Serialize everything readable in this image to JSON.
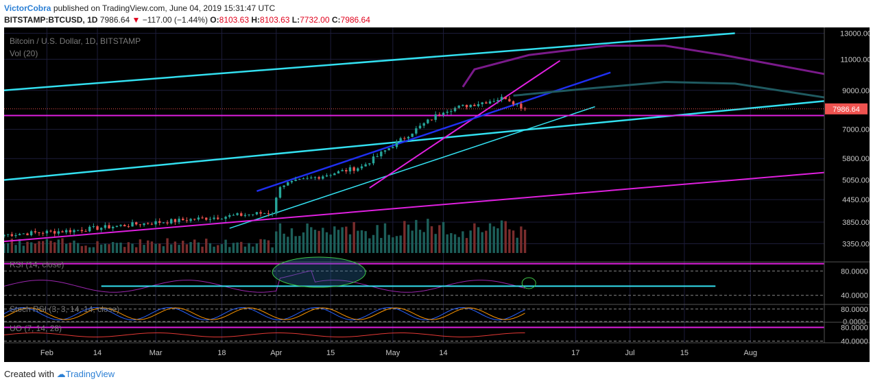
{
  "header": {
    "author": "VictorCobra",
    "published": "published on TradingView.com, June 04, 2019 15:31:47 UTC",
    "symbol": "BITSTAMP:BTCUSD, 1D",
    "price": "7986.64",
    "change": "−117.00 (−1.44%)",
    "o_label": "O:",
    "o_value": "8103.63",
    "h_label": "H:",
    "h_value": "8103.63",
    "l_label": "L:",
    "l_value": "7732.00",
    "c_label": "C:",
    "c_value": "7986.64"
  },
  "footer": {
    "created": "Created with",
    "brand": "TradingView"
  },
  "colors": {
    "background": "#000000",
    "up": "#26a69a",
    "down": "#ef5350",
    "cyan": "#33e0f0",
    "magenta": "#e020e0",
    "blue": "#1f2ff0",
    "price_tag": "#ef5350"
  },
  "chart_data": [
    {
      "type": "candlestick",
      "title": "Bitcoin / U.S. Dollar, 1D, BITSTAMP",
      "volume_label": "Vol (20)",
      "y_scale": "log",
      "ylim": [
        3100,
        13500
      ],
      "y_ticks": [
        13000,
        11000,
        9000,
        7000,
        5800,
        5050,
        4450,
        3850,
        3350
      ],
      "y_tick_labels": [
        "13000.00",
        "11000.00",
        "9000.00",
        "7000.00",
        "5800.00",
        "5050.00",
        "4450.00",
        "3850.00",
        "3350.00"
      ],
      "last_price_label": "7986.64",
      "last_price": 7986.64,
      "x_ticks": [
        "Feb",
        "14",
        "Mar",
        "18",
        "Apr",
        "15",
        "May",
        "14",
        "17",
        "Jul",
        "15",
        "Aug"
      ],
      "x_tick_dates": [
        "2019-02-01",
        "2019-02-14",
        "2019-03-01",
        "2019-03-18",
        "2019-04-01",
        "2019-04-15",
        "2019-05-01",
        "2019-05-14",
        "2019-06-17",
        "2019-07-01",
        "2019-07-15",
        "2019-08-01"
      ],
      "x_range": [
        "2019-01-21",
        "2019-08-20"
      ],
      "key_candles": [
        {
          "date": "2019-01-21",
          "close": 3550
        },
        {
          "date": "2019-02-08",
          "close": 3650
        },
        {
          "date": "2019-02-24",
          "close": 3800
        },
        {
          "date": "2019-03-31",
          "close": 4100
        },
        {
          "date": "2019-04-02",
          "close": 4880
        },
        {
          "date": "2019-04-23",
          "close": 5500
        },
        {
          "date": "2019-05-14",
          "close": 7900
        },
        {
          "date": "2019-05-30",
          "close": 8600
        },
        {
          "date": "2019-06-04",
          "close": 7986.64
        }
      ]
    },
    {
      "type": "line",
      "title": "RSI (14, close)",
      "y_ticks": [
        80,
        40
      ],
      "y_tick_labels": [
        "80.0000",
        "40.0000"
      ],
      "ylim": [
        25,
        95
      ]
    },
    {
      "type": "line",
      "title": "Stoch RSI (3, 3, 14, 14, close)",
      "y_ticks": [
        80,
        0
      ],
      "y_tick_labels": [
        "80.0000",
        "0.0000"
      ],
      "ylim": [
        -5,
        110
      ]
    },
    {
      "type": "line",
      "title": "UO (7, 14, 28)",
      "y_ticks": [
        80,
        40
      ],
      "y_tick_labels": [
        "80.0000",
        "40.0000"
      ],
      "ylim": [
        35,
        95
      ]
    }
  ]
}
